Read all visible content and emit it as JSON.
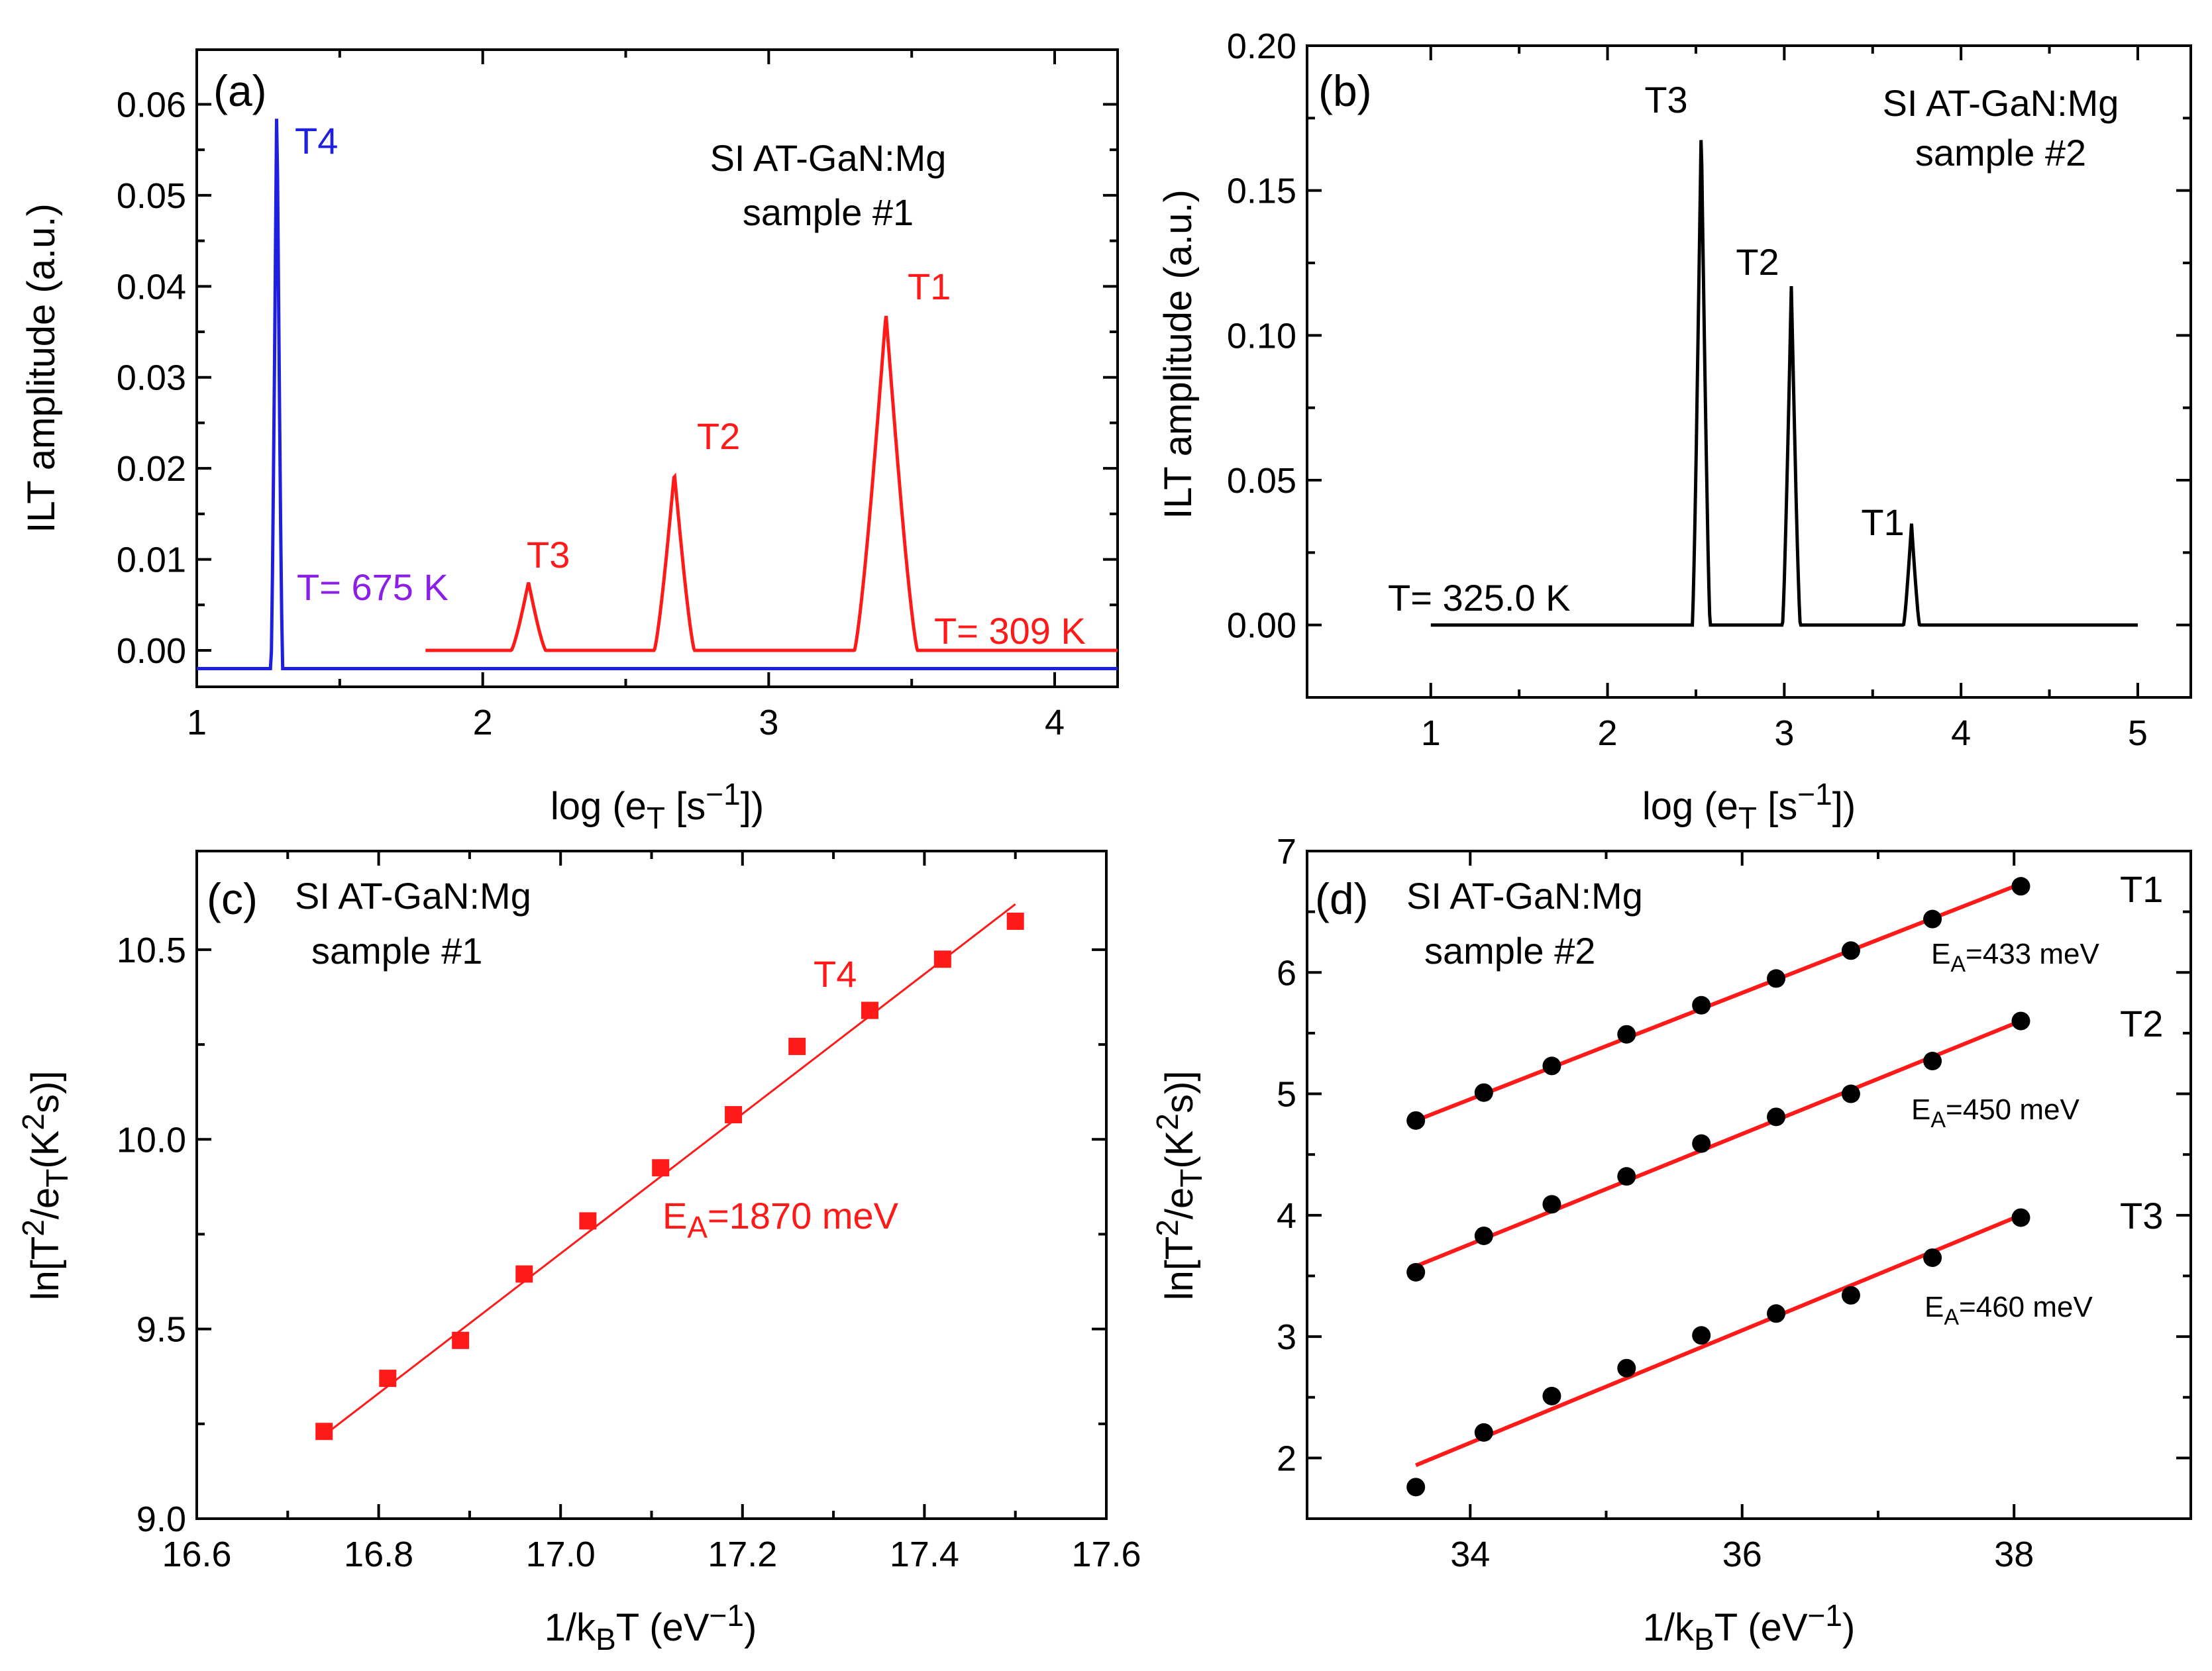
{
  "colors": {
    "red": "#ff1a1a",
    "blue": "#1f1fe0",
    "purple": "#8b1fe6",
    "black": "#000000"
  },
  "chart_data": [
    {
      "panel": "(a)",
      "type": "line",
      "xlabel": {
        "main": "log (e",
        "sub": "T",
        "rest": " [s",
        "sup": "−1",
        "end": "])"
      },
      "ylabel": "ILT amplitude (a.u.)",
      "xlim": [
        1,
        4.22
      ],
      "ylim": [
        -0.004,
        0.066
      ],
      "xticks": [
        "1",
        "2",
        "3",
        "4"
      ],
      "yticks": [
        "0.00",
        "0.01",
        "0.02",
        "0.03",
        "0.04",
        "0.05",
        "0.06"
      ],
      "legend_text": [
        "SI AT-GaN:Mg",
        "sample #1"
      ],
      "series": [
        {
          "name": "T= 675 K",
          "color": "blue",
          "baseline": -0.002,
          "xrange": [
            1.0,
            4.22
          ],
          "peaks": [
            {
              "label": "T4",
              "center": 1.28,
              "height": 0.062,
              "width": 0.04
            }
          ]
        },
        {
          "name": "T= 309 K",
          "color": "red",
          "baseline": 0.0,
          "xrange": [
            1.8,
            4.22
          ],
          "peaks": [
            {
              "label": "T3",
              "center": 2.16,
              "height": 0.0075,
              "width": 0.12
            },
            {
              "label": "T2",
              "center": 2.67,
              "height": 0.0195,
              "width": 0.14
            },
            {
              "label": "T1",
              "center": 3.41,
              "height": 0.037,
              "width": 0.22
            }
          ]
        }
      ]
    },
    {
      "panel": "(b)",
      "type": "line",
      "xlabel": {
        "main": "log (e",
        "sub": "T",
        "rest": " [s",
        "sup": "−1",
        "end": "])"
      },
      "ylabel": "ILT amplitude (a.u.)",
      "xlim": [
        0.3,
        5.3
      ],
      "ylim": [
        -0.025,
        0.2
      ],
      "xticks": [
        "1",
        "2",
        "3",
        "4",
        "5"
      ],
      "yticks": [
        "0.00",
        "0.05",
        "0.10",
        "0.15",
        "0.20"
      ],
      "legend_text": [
        "SI AT-GaN:Mg",
        "sample #2"
      ],
      "series": [
        {
          "name": "T= 325.0 K",
          "color": "black",
          "baseline": 0.0,
          "xrange": [
            1.0,
            5.0
          ],
          "peaks": [
            {
              "label": "T3",
              "center": 2.53,
              "height": 0.172,
              "width": 0.1
            },
            {
              "label": "T2",
              "center": 3.04,
              "height": 0.117,
              "width": 0.1
            },
            {
              "label": "T1",
              "center": 3.72,
              "height": 0.035,
              "width": 0.09
            }
          ]
        }
      ]
    },
    {
      "panel": "(c)",
      "type": "scatter",
      "xlabel": {
        "main": "1/k",
        "sub": "B",
        "rest": "T (eV",
        "sup": "−1",
        "end": ")"
      },
      "ylabel": {
        "a": "ln[T",
        "sup": "2",
        "b": "/e",
        "sub": "T",
        "c": "(K",
        "sup2": "2",
        "d": "s)]"
      },
      "xlim": [
        16.6,
        17.6
      ],
      "ylim": [
        9.0,
        10.76
      ],
      "xticks": [
        "16.6",
        "16.8",
        "17.0",
        "17.2",
        "17.4",
        "17.6"
      ],
      "yticks": [
        "9.0",
        "9.5",
        "10.0",
        "10.5"
      ],
      "legend_text": [
        "SI AT-GaN:Mg",
        "sample #1"
      ],
      "series": [
        {
          "name": "T4",
          "color": "red",
          "marker": "square",
          "x": [
            16.74,
            16.81,
            16.89,
            16.96,
            17.03,
            17.11,
            17.19,
            17.26,
            17.34,
            17.42,
            17.5
          ],
          "y": [
            9.23,
            9.37,
            9.47,
            9.645,
            9.785,
            9.925,
            10.065,
            10.245,
            10.34,
            10.475,
            10.575
          ],
          "fit": {
            "x": [
              16.74,
              17.5
            ],
            "y": [
              9.22,
              10.62
            ]
          },
          "annotation": {
            "main": "E",
            "sub": "A",
            "rest": "=1870 meV"
          }
        }
      ]
    },
    {
      "panel": "(d)",
      "type": "scatter",
      "xlabel": {
        "main": "1/k",
        "sub": "B",
        "rest": "T (eV",
        "sup": "−1",
        "end": ")"
      },
      "ylabel": {
        "a": "ln[T",
        "sup": "2",
        "b": "/e",
        "sub": "T",
        "c": "(K",
        "sup2": "2",
        "d": "s)]"
      },
      "xlim": [
        32.8,
        39.3
      ],
      "ylim": [
        1.5,
        7.0
      ],
      "xticks": [
        "34",
        "36",
        "38"
      ],
      "yticks": [
        "2",
        "3",
        "4",
        "5",
        "6",
        "7"
      ],
      "legend_text": [
        "SI AT-GaN:Mg",
        "sample #2"
      ],
      "series": [
        {
          "name": "T1",
          "color": "black",
          "marker": "circle",
          "x": [
            33.6,
            34.1,
            34.6,
            35.15,
            35.7,
            36.25,
            36.8,
            37.4,
            38.05
          ],
          "y": [
            4.78,
            5.01,
            5.23,
            5.49,
            5.73,
            5.95,
            6.18,
            6.44,
            6.71
          ],
          "fit": {
            "x": [
              33.6,
              38.05
            ],
            "y": [
              4.78,
              6.73
            ]
          },
          "annotation": {
            "main": "E",
            "sub": "A",
            "rest": "=433 meV"
          }
        },
        {
          "name": "T2",
          "color": "black",
          "marker": "circle",
          "x": [
            33.6,
            34.1,
            34.6,
            35.15,
            35.7,
            36.25,
            36.8,
            37.4,
            38.05
          ],
          "y": [
            3.53,
            3.83,
            4.09,
            4.32,
            4.59,
            4.81,
            5.0,
            5.27,
            5.6
          ],
          "fit": {
            "x": [
              33.6,
              38.05
            ],
            "y": [
              3.58,
              5.6
            ]
          },
          "annotation": {
            "main": "E",
            "sub": "A",
            "rest": "=450 meV"
          }
        },
        {
          "name": "T3",
          "color": "black",
          "marker": "circle",
          "x": [
            33.6,
            34.1,
            34.6,
            35.15,
            35.7,
            36.25,
            36.8,
            37.4,
            38.05
          ],
          "y": [
            1.76,
            2.21,
            2.51,
            2.74,
            3.01,
            3.19,
            3.34,
            3.65,
            3.98
          ],
          "fit": {
            "x": [
              33.6,
              38.05
            ],
            "y": [
              1.94,
              4.0
            ]
          },
          "annotation": {
            "main": "E",
            "sub": "A",
            "rest": "=460 meV"
          }
        }
      ]
    }
  ]
}
